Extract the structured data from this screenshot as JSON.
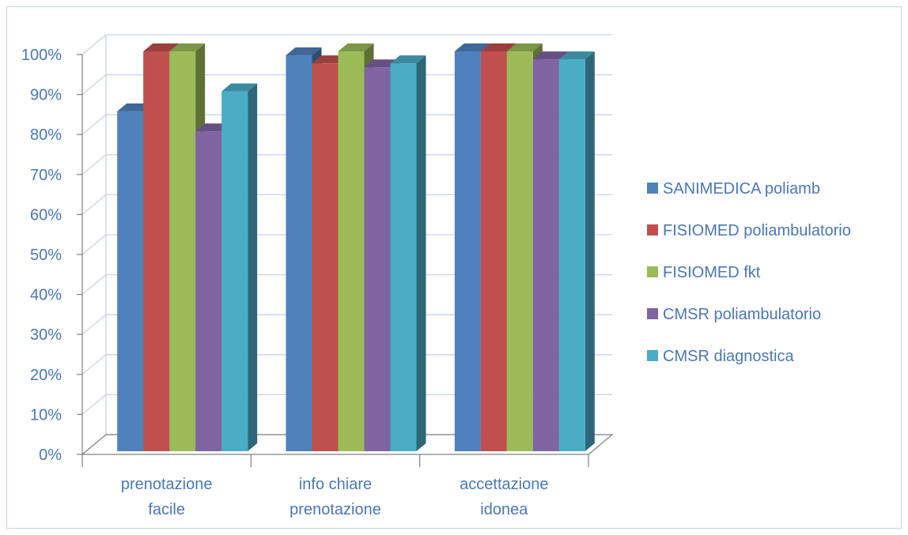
{
  "chart_data": {
    "type": "bar",
    "subtype": "3d-clustered-column",
    "title": "",
    "xlabel": "",
    "ylabel": "",
    "categories": [
      [
        "prenotazione",
        "facile"
      ],
      [
        "info chiare",
        "prenotazione"
      ],
      [
        "accettazione",
        "idonea"
      ]
    ],
    "series": [
      {
        "name": "SANIMEDICA poliamb",
        "color": "#4f81bd",
        "values": [
          0.85,
          0.99,
          1.0
        ]
      },
      {
        "name": "FISIOMED poliambulatorio",
        "color": "#c0504d",
        "values": [
          1.0,
          0.97,
          1.0
        ]
      },
      {
        "name": "FISIOMED fkt",
        "color": "#9bbb59",
        "values": [
          1.0,
          1.0,
          1.0
        ]
      },
      {
        "name": "CMSR poliambulatorio",
        "color": "#8064a2",
        "values": [
          0.8,
          0.96,
          0.98
        ]
      },
      {
        "name": "CMSR diagnostica",
        "color": "#4bacc6",
        "values": [
          0.9,
          0.97,
          0.98
        ]
      }
    ],
    "y_ticks": [
      "0%",
      "10%",
      "20%",
      "30%",
      "40%",
      "50%",
      "60%",
      "70%",
      "80%",
      "90%",
      "100%"
    ],
    "ylim": [
      0,
      1
    ],
    "grid": true,
    "legend_position": "right",
    "text_color": "#4a77b8",
    "grid_color": "#c9d3e6",
    "axis_color": "#808080"
  }
}
